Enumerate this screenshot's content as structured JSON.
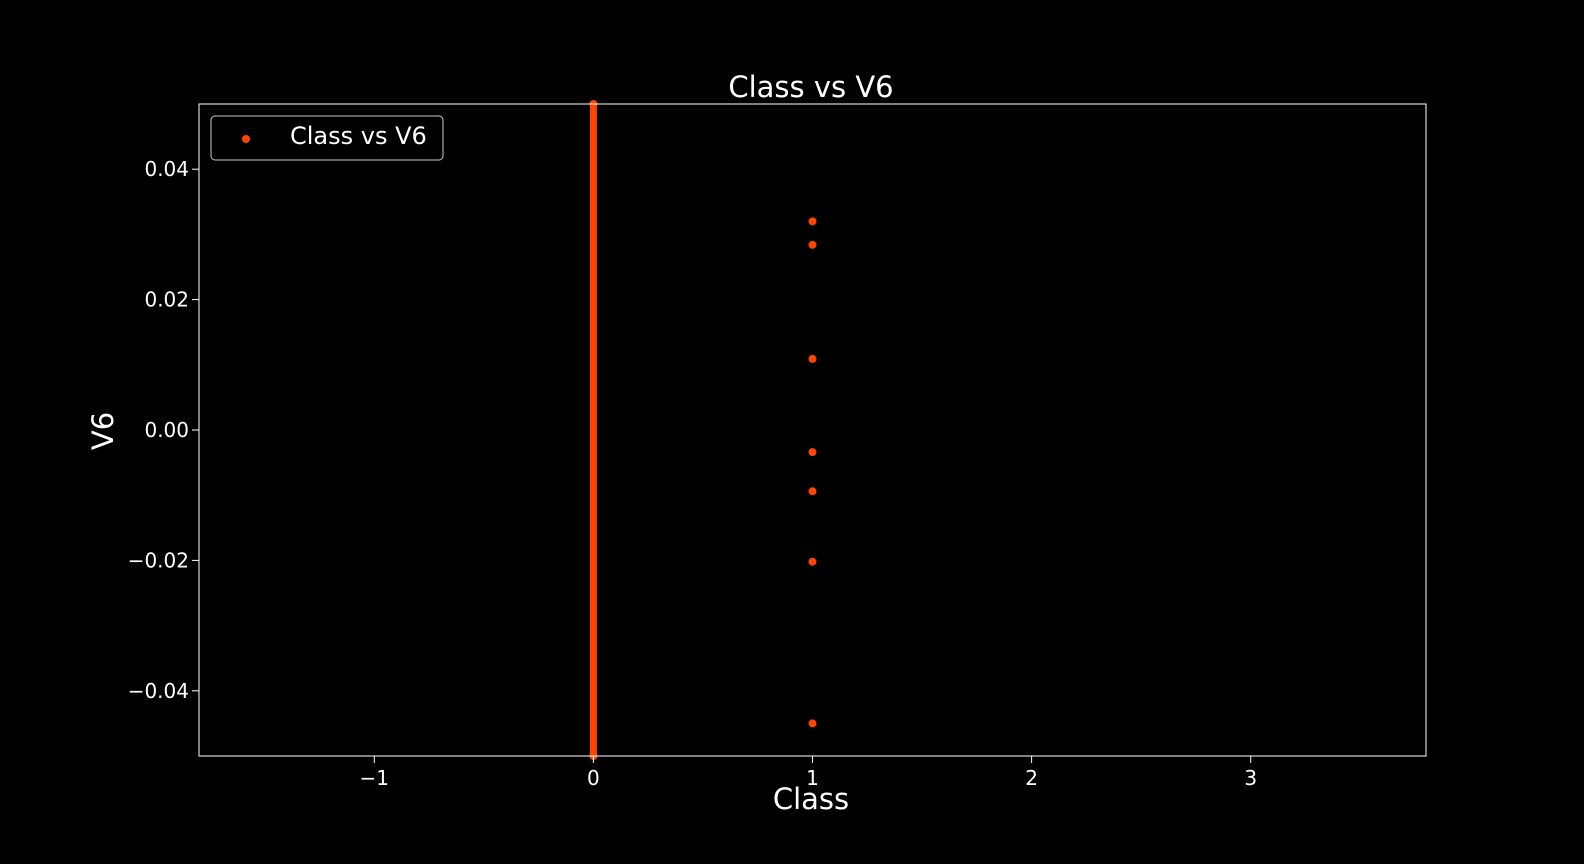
{
  "chart_data": {
    "type": "scatter",
    "title": "Class vs V6",
    "xlabel": "Class",
    "ylabel": "V6",
    "xlim": [
      -1.8,
      3.8
    ],
    "ylim": [
      -0.05,
      0.05
    ],
    "xticks": [
      -1,
      0,
      1,
      2,
      3
    ],
    "xtick_labels": [
      "−1",
      "0",
      "1",
      "2",
      "3"
    ],
    "yticks": [
      -0.04,
      -0.02,
      0.0,
      0.02,
      0.04
    ],
    "ytick_labels": [
      "−0.04",
      "−0.02",
      "0.00",
      "0.02",
      "0.04"
    ],
    "grid": false,
    "legend_position": "top-left",
    "series": [
      {
        "name": "Class vs V6",
        "color": "#ff4500",
        "points": [
          {
            "x": 0,
            "y": -0.05
          },
          {
            "x": 0,
            "y": 0.05
          },
          {
            "x": 1,
            "y": 0.032
          },
          {
            "x": 1,
            "y": 0.0284
          },
          {
            "x": 1,
            "y": 0.0109
          },
          {
            "x": 1,
            "y": -0.0034
          },
          {
            "x": 1,
            "y": -0.0094
          },
          {
            "x": 1,
            "y": -0.0202
          },
          {
            "x": 1,
            "y": -0.045
          }
        ],
        "dense_band": {
          "x": 0,
          "y_from": -0.05,
          "y_to": 0.05
        }
      }
    ],
    "background_color": "#000000",
    "foreground_color": "#ffffff"
  }
}
